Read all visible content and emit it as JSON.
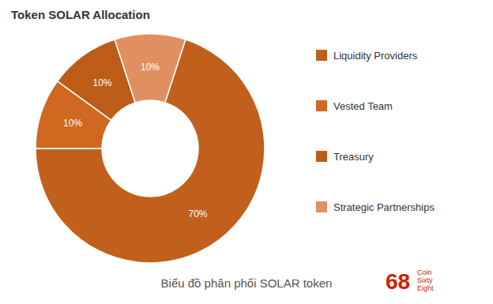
{
  "chart_data": {
    "type": "donut",
    "title": "Token SOLAR Allocation",
    "subtitle": "Biểu đồ phân phối SOLAR token",
    "categories": [
      "Liquidity Providers",
      "Vested Team",
      "Treasury",
      "Strategic Partnerships"
    ],
    "values": [
      70,
      10,
      10,
      10
    ],
    "value_labels": [
      "70%",
      "10%",
      "10%",
      "10%"
    ],
    "colors": [
      "#C0601C",
      "#D06820",
      "#BC5C18",
      "#E09060"
    ],
    "data_labels": true,
    "annotations": [
      "68",
      "Coin",
      "Sixty",
      "Eight"
    ]
  }
}
